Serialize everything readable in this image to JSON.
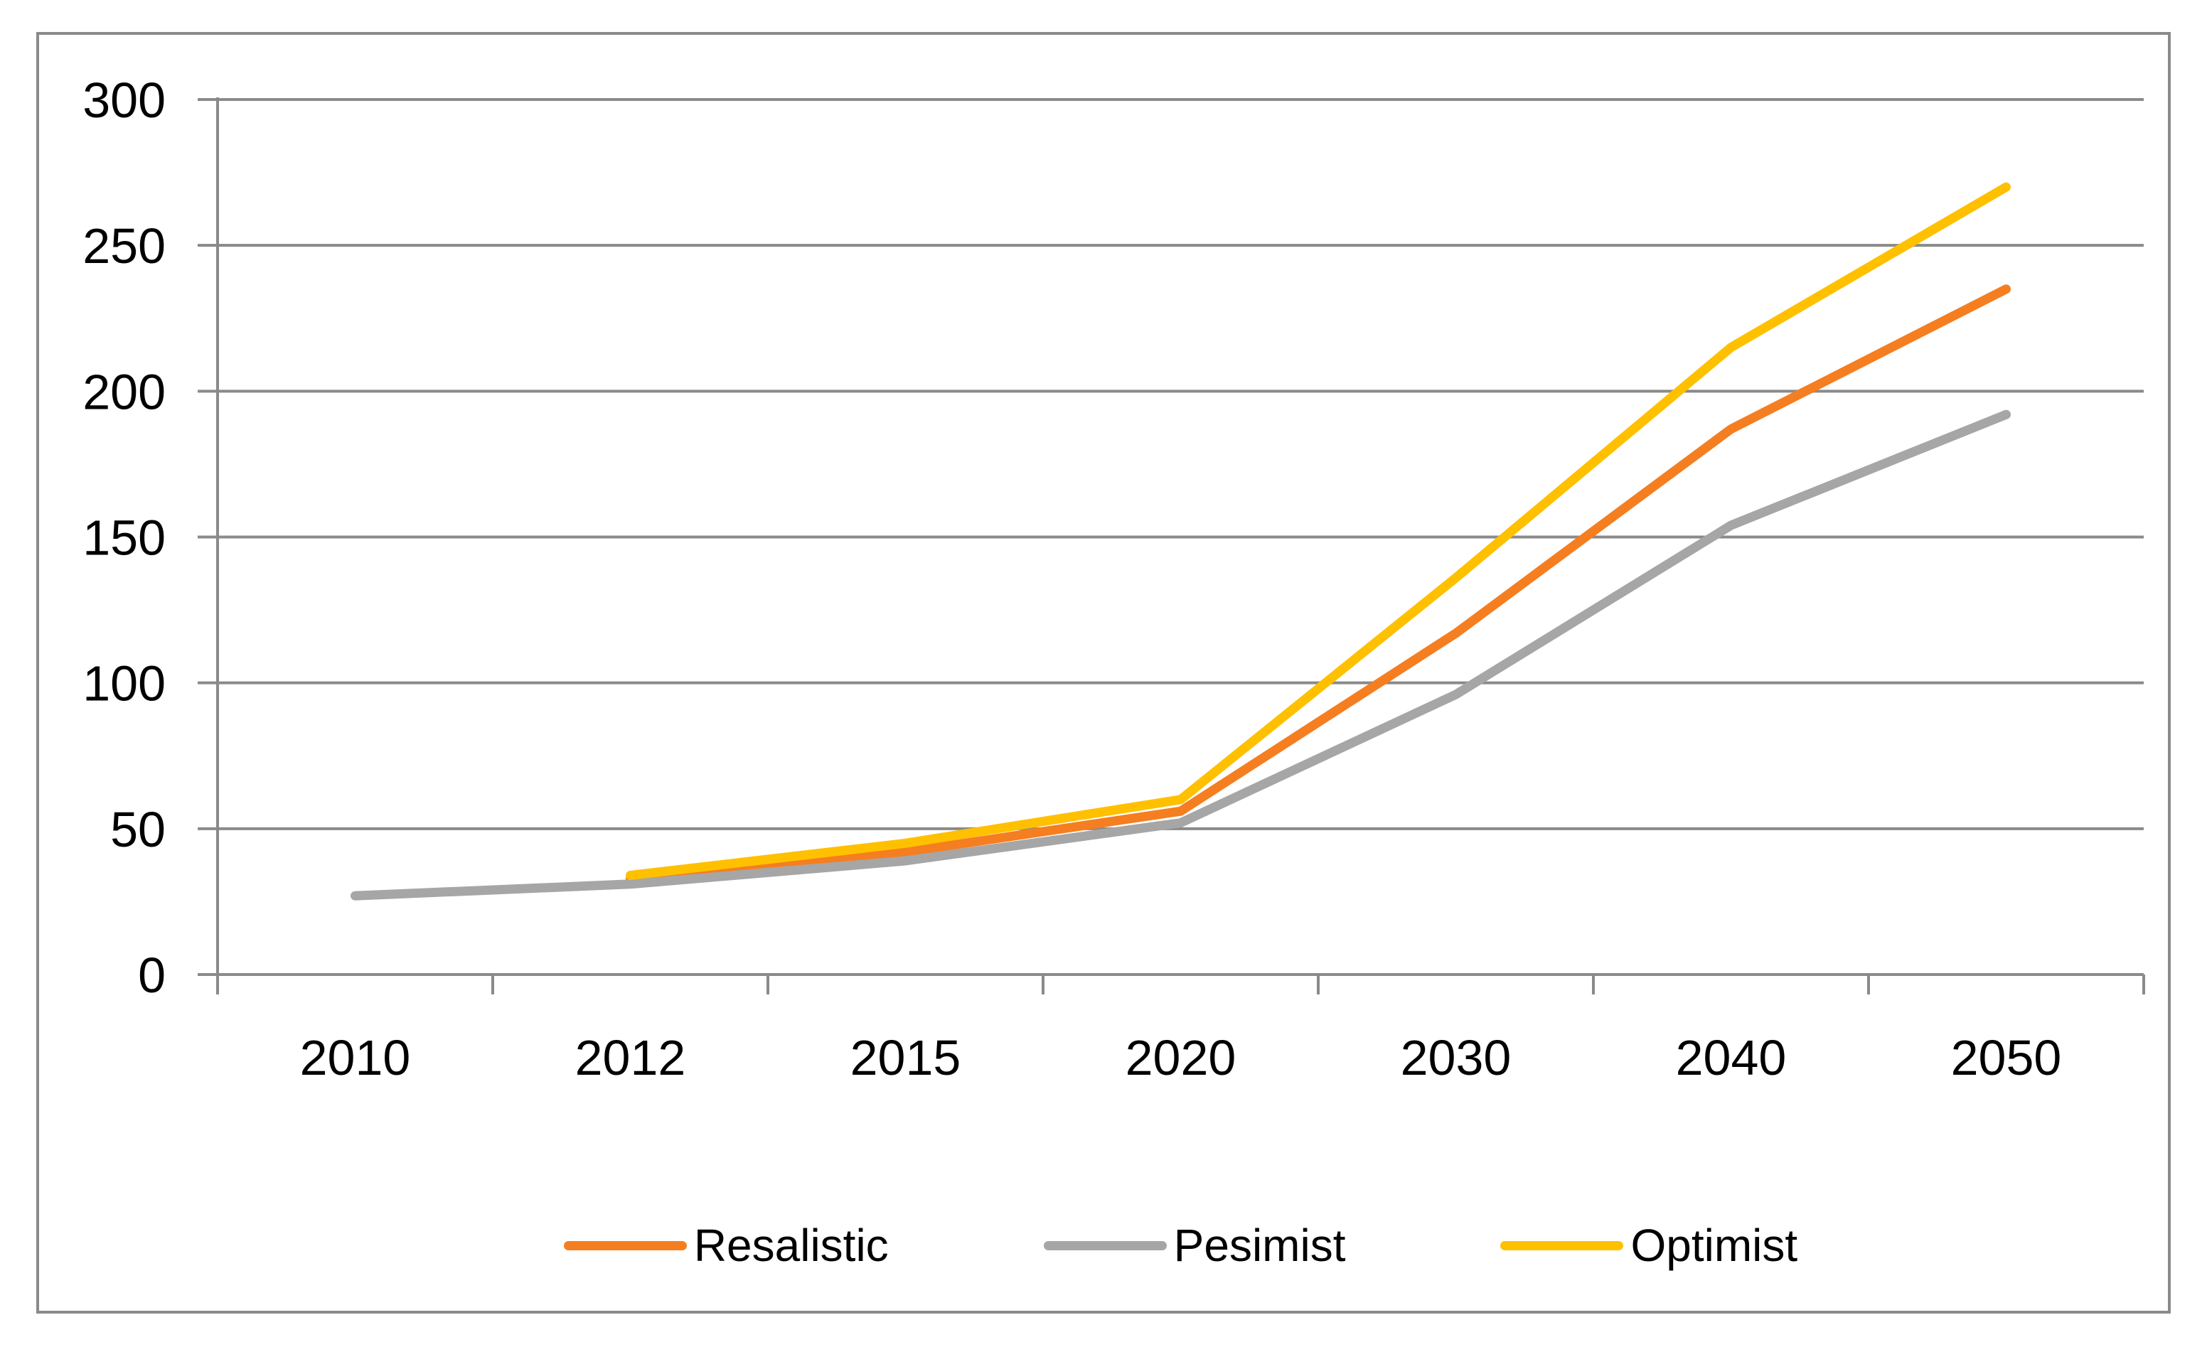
{
  "chart_data": {
    "type": "line",
    "categories": [
      "2010",
      "2012",
      "2015",
      "2020",
      "2030",
      "2040",
      "2050"
    ],
    "series": [
      {
        "name": "Resalistic",
        "color": "#F57E20",
        "values": [
          null,
          33,
          42,
          56,
          117,
          187,
          235
        ]
      },
      {
        "name": "Pesimist",
        "color": "#A6A6A6",
        "values": [
          27,
          31,
          39,
          52,
          96,
          154,
          192
        ]
      },
      {
        "name": "Optimist",
        "color": "#FFC000",
        "values": [
          null,
          34,
          45,
          60,
          136,
          215,
          270
        ]
      }
    ],
    "title": "",
    "xlabel": "",
    "ylabel": "",
    "ylim": [
      0,
      300
    ],
    "yticks": [
      0,
      50,
      100,
      150,
      200,
      250,
      300
    ],
    "grid": true,
    "legend_position": "bottom"
  },
  "style": {
    "axis_color": "#8A8A8A",
    "text_color": "#000000",
    "background": "#FFFFFF",
    "border_color": "#8A8A8A"
  }
}
